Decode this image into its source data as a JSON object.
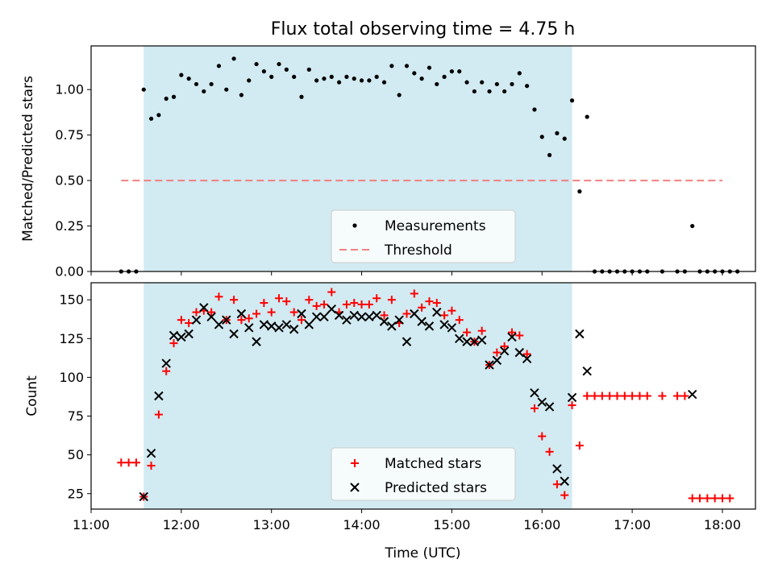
{
  "figure": {
    "title": "Flux total observing time = 4.75 h",
    "xlabel": "Time (UTC)",
    "xticks": [
      "11:00",
      "12:00",
      "13:00",
      "14:00",
      "15:00",
      "16:00",
      "17:00",
      "18:00"
    ]
  },
  "colors": {
    "observing_span": "#add8e6",
    "measurements": "#000000",
    "threshold": "#f08080",
    "matched": "#ff0000",
    "predicted": "#000000"
  },
  "chart_data": [
    {
      "type": "scatter",
      "ylabel": "Matched/Predicted stars",
      "xlim": [
        "11:00",
        "18:22"
      ],
      "ylim": [
        0,
        1.24
      ],
      "yticks": [
        "0.00",
        "0.25",
        "0.50",
        "0.75",
        "1.00"
      ],
      "observing_span": [
        "11:35",
        "16:20"
      ],
      "threshold": {
        "value": 0.5,
        "x_range": [
          "11:20",
          "18:00"
        ]
      },
      "legend": {
        "position": "lower-center",
        "entries": [
          "Measurements",
          "Threshold"
        ]
      },
      "series": [
        {
          "name": "Measurements",
          "marker": "dot",
          "points": [
            [
              "11:20",
              0
            ],
            [
              "11:25",
              0
            ],
            [
              "11:30",
              0
            ],
            [
              "11:35",
              1.0
            ],
            [
              "11:40",
              0.84
            ],
            [
              "11:45",
              0.86
            ],
            [
              "11:50",
              0.95
            ],
            [
              "11:55",
              0.96
            ],
            [
              "12:00",
              1.08
            ],
            [
              "12:05",
              1.06
            ],
            [
              "12:10",
              1.03
            ],
            [
              "12:15",
              0.99
            ],
            [
              "12:20",
              1.03
            ],
            [
              "12:25",
              1.13
            ],
            [
              "12:30",
              1.0
            ],
            [
              "12:35",
              1.17
            ],
            [
              "12:40",
              0.97
            ],
            [
              "12:45",
              1.05
            ],
            [
              "12:50",
              1.14
            ],
            [
              "12:55",
              1.1
            ],
            [
              "13:00",
              1.07
            ],
            [
              "13:05",
              1.14
            ],
            [
              "13:10",
              1.11
            ],
            [
              "13:15",
              1.07
            ],
            [
              "13:20",
              0.96
            ],
            [
              "13:25",
              1.11
            ],
            [
              "13:30",
              1.05
            ],
            [
              "13:35",
              1.06
            ],
            [
              "13:40",
              1.07
            ],
            [
              "13:45",
              1.04
            ],
            [
              "13:50",
              1.07
            ],
            [
              "13:55",
              1.06
            ],
            [
              "14:00",
              1.05
            ],
            [
              "14:05",
              1.05
            ],
            [
              "14:10",
              1.07
            ],
            [
              "14:15",
              1.04
            ],
            [
              "14:20",
              1.13
            ],
            [
              "14:25",
              0.97
            ],
            [
              "14:30",
              1.13
            ],
            [
              "14:35",
              1.09
            ],
            [
              "14:40",
              1.06
            ],
            [
              "14:45",
              1.12
            ],
            [
              "14:50",
              1.03
            ],
            [
              "14:55",
              1.07
            ],
            [
              "15:00",
              1.1
            ],
            [
              "15:05",
              1.1
            ],
            [
              "15:10",
              1.04
            ],
            [
              "15:15",
              0.99
            ],
            [
              "15:20",
              1.04
            ],
            [
              "15:25",
              0.99
            ],
            [
              "15:30",
              1.03
            ],
            [
              "15:35",
              0.99
            ],
            [
              "15:40",
              1.03
            ],
            [
              "15:45",
              1.09
            ],
            [
              "15:50",
              1.02
            ],
            [
              "15:55",
              0.89
            ],
            [
              "16:00",
              0.74
            ],
            [
              "16:05",
              0.64
            ],
            [
              "16:10",
              0.76
            ],
            [
              "16:15",
              0.73
            ],
            [
              "16:20",
              0.94
            ],
            [
              "16:25",
              0.44
            ],
            [
              "16:30",
              0.85
            ],
            [
              "16:35",
              0
            ],
            [
              "16:40",
              0
            ],
            [
              "16:45",
              0
            ],
            [
              "16:50",
              0
            ],
            [
              "16:55",
              0
            ],
            [
              "17:00",
              0
            ],
            [
              "17:05",
              0
            ],
            [
              "17:10",
              0
            ],
            [
              "17:20",
              0
            ],
            [
              "17:30",
              0
            ],
            [
              "17:35",
              0
            ],
            [
              "17:40",
              0.25
            ],
            [
              "17:45",
              0
            ],
            [
              "17:50",
              0
            ],
            [
              "17:55",
              0
            ],
            [
              "18:00",
              0
            ],
            [
              "18:05",
              0
            ],
            [
              "18:10",
              0
            ]
          ]
        }
      ]
    },
    {
      "type": "scatter",
      "ylabel": "Count",
      "xlim": [
        "11:00",
        "18:22"
      ],
      "ylim": [
        15,
        161
      ],
      "yticks": [
        "25",
        "50",
        "75",
        "100",
        "125",
        "150"
      ],
      "observing_span": [
        "11:35",
        "16:20"
      ],
      "legend": {
        "position": "lower-center",
        "entries": [
          "Matched stars",
          "Predicted stars"
        ]
      },
      "series": [
        {
          "name": "Matched stars",
          "marker": "plus",
          "points": [
            [
              "11:20",
              45
            ],
            [
              "11:25",
              45
            ],
            [
              "11:30",
              45
            ],
            [
              "11:35",
              23
            ],
            [
              "11:40",
              43
            ],
            [
              "11:45",
              76
            ],
            [
              "11:50",
              104
            ],
            [
              "11:55",
              122
            ],
            [
              "12:00",
              137
            ],
            [
              "12:05",
              135
            ],
            [
              "12:10",
              142
            ],
            [
              "12:15",
              143
            ],
            [
              "12:20",
              142
            ],
            [
              "12:25",
              152
            ],
            [
              "12:30",
              137
            ],
            [
              "12:35",
              150
            ],
            [
              "12:40",
              137
            ],
            [
              "12:45",
              138
            ],
            [
              "12:50",
              141
            ],
            [
              "12:55",
              148
            ],
            [
              "13:00",
              142
            ],
            [
              "13:05",
              151
            ],
            [
              "13:10",
              149
            ],
            [
              "13:15",
              142
            ],
            [
              "13:20",
              137
            ],
            [
              "13:25",
              150
            ],
            [
              "13:30",
              146
            ],
            [
              "13:35",
              147
            ],
            [
              "13:40",
              155
            ],
            [
              "13:45",
              142
            ],
            [
              "13:50",
              147
            ],
            [
              "13:55",
              148
            ],
            [
              "14:00",
              147
            ],
            [
              "14:05",
              147
            ],
            [
              "14:10",
              151
            ],
            [
              "14:15",
              140
            ],
            [
              "14:20",
              150
            ],
            [
              "14:25",
              135
            ],
            [
              "14:30",
              141
            ],
            [
              "14:35",
              154
            ],
            [
              "14:40",
              145
            ],
            [
              "14:45",
              149
            ],
            [
              "14:50",
              148
            ],
            [
              "14:55",
              140
            ],
            [
              "15:00",
              143
            ],
            [
              "15:05",
              137
            ],
            [
              "15:10",
              129
            ],
            [
              "15:15",
              123
            ],
            [
              "15:20",
              130
            ],
            [
              "15:25",
              108
            ],
            [
              "15:30",
              116
            ],
            [
              "15:35",
              120
            ],
            [
              "15:40",
              129
            ],
            [
              "15:45",
              127
            ],
            [
              "15:50",
              115
            ],
            [
              "15:55",
              80
            ],
            [
              "16:00",
              62
            ],
            [
              "16:05",
              52
            ],
            [
              "16:10",
              31
            ],
            [
              "16:15",
              24
            ],
            [
              "16:20",
              82
            ],
            [
              "16:25",
              56
            ],
            [
              "16:30",
              88
            ],
            [
              "16:35",
              88
            ],
            [
              "16:40",
              88
            ],
            [
              "16:45",
              88
            ],
            [
              "16:50",
              88
            ],
            [
              "16:55",
              88
            ],
            [
              "17:00",
              88
            ],
            [
              "17:05",
              88
            ],
            [
              "17:10",
              88
            ],
            [
              "17:20",
              88
            ],
            [
              "17:30",
              88
            ],
            [
              "17:35",
              88
            ],
            [
              "17:40",
              22
            ],
            [
              "17:45",
              22
            ],
            [
              "17:50",
              22
            ],
            [
              "17:55",
              22
            ],
            [
              "18:00",
              22
            ],
            [
              "18:05",
              22
            ]
          ]
        },
        {
          "name": "Predicted stars",
          "marker": "cross",
          "points": [
            [
              "11:35",
              23
            ],
            [
              "11:40",
              51
            ],
            [
              "11:45",
              88
            ],
            [
              "11:50",
              109
            ],
            [
              "11:55",
              127
            ],
            [
              "12:00",
              126
            ],
            [
              "12:05",
              128
            ],
            [
              "12:10",
              137
            ],
            [
              "12:15",
              145
            ],
            [
              "12:20",
              139
            ],
            [
              "12:25",
              134
            ],
            [
              "12:30",
              137
            ],
            [
              "12:35",
              128
            ],
            [
              "12:40",
              141
            ],
            [
              "12:45",
              132
            ],
            [
              "12:50",
              123
            ],
            [
              "12:55",
              134
            ],
            [
              "13:00",
              133
            ],
            [
              "13:05",
              132
            ],
            [
              "13:10",
              134
            ],
            [
              "13:15",
              131
            ],
            [
              "13:20",
              141
            ],
            [
              "13:25",
              134
            ],
            [
              "13:30",
              139
            ],
            [
              "13:35",
              139
            ],
            [
              "13:40",
              144
            ],
            [
              "13:45",
              140
            ],
            [
              "13:50",
              137
            ],
            [
              "13:55",
              140
            ],
            [
              "14:00",
              139
            ],
            [
              "14:05",
              139
            ],
            [
              "14:10",
              140
            ],
            [
              "14:15",
              136
            ],
            [
              "14:20",
              133
            ],
            [
              "14:25",
              137
            ],
            [
              "14:30",
              123
            ],
            [
              "14:35",
              141
            ],
            [
              "14:40",
              136
            ],
            [
              "14:45",
              133
            ],
            [
              "14:50",
              142
            ],
            [
              "14:55",
              134
            ],
            [
              "15:00",
              132
            ],
            [
              "15:05",
              125
            ],
            [
              "15:10",
              123
            ],
            [
              "15:15",
              123
            ],
            [
              "15:20",
              124
            ],
            [
              "15:25",
              108
            ],
            [
              "15:30",
              111
            ],
            [
              "15:35",
              117
            ],
            [
              "15:40",
              126
            ],
            [
              "15:45",
              116
            ],
            [
              "15:50",
              112
            ],
            [
              "15:55",
              90
            ],
            [
              "16:00",
              84
            ],
            [
              "16:05",
              81
            ],
            [
              "16:10",
              41
            ],
            [
              "16:15",
              33
            ],
            [
              "16:20",
              87
            ],
            [
              "16:25",
              128
            ],
            [
              "16:30",
              104
            ],
            [
              "17:40",
              89
            ]
          ]
        }
      ]
    }
  ]
}
